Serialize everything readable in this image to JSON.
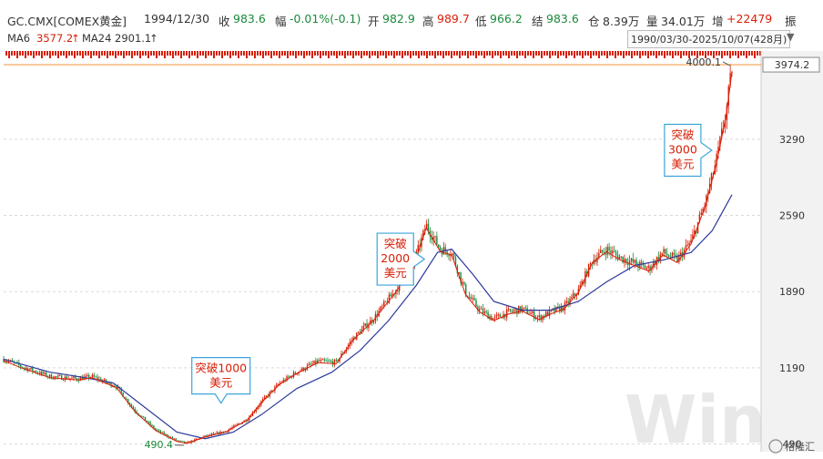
{
  "header": {
    "symbol": "GC.CMX[COMEX黄金]",
    "date": "1994/12/30",
    "close_label": "收",
    "close_value": "983.6",
    "change_label": "幅",
    "change_value": "-0.01%(-0.1)",
    "open_label": "开",
    "open_value": "982.9",
    "high_label": "高",
    "high_value": "989.7",
    "low_label": "低",
    "low_value": "966.2",
    "settle_label": "结",
    "settle_value": "983.6",
    "oi_label": "仓",
    "oi_value": "8.39万",
    "volume_label": "量",
    "volume_value": "34.01万",
    "increase_label": "增",
    "increase_value": "+22479",
    "amp_label": "振"
  },
  "ma": {
    "ma6_label": "MA6",
    "ma6_value": "3577.2",
    "ma24_label": "MA24",
    "ma24_value": "2901.1",
    "arrow": "↑"
  },
  "range_label": "1990/03/30-2025/10/07(428月)",
  "colors": {
    "up": "#d81e06",
    "down": "#1a8a3a",
    "ma6": "#d81e06",
    "ma24": "#2b3a9b",
    "grid": "#d9d9d9",
    "axis_bg": "#f2f2f2",
    "callout": "#3aa6d8",
    "price_line": "#f0a050"
  },
  "chart_data": {
    "type": "candlestick",
    "title": "",
    "x_range": [
      "1990/03",
      "2025/10"
    ],
    "y_ticks": [
      490,
      1190,
      1890,
      2590,
      3290
    ],
    "ylim": [
      420,
      4100
    ],
    "last_price_label": "3974.2",
    "max_label": "4000.1",
    "min_label": "490.4",
    "path_points": [
      [
        1990.2,
        1270
      ],
      [
        1991.5,
        1200
      ],
      [
        1993.5,
        1110
      ],
      [
        1995.5,
        1090
      ],
      [
        1996.5,
        1110
      ],
      [
        1998.2,
        1020
      ],
      [
        1999.5,
        800
      ],
      [
        2001.0,
        620
      ],
      [
        2002.5,
        520
      ],
      [
        2003.2,
        500
      ],
      [
        2004.5,
        560
      ],
      [
        2006.0,
        610
      ],
      [
        2007.5,
        720
      ],
      [
        2008.5,
        880
      ],
      [
        2009.8,
        1050
      ],
      [
        2011.0,
        1150
      ],
      [
        2012.5,
        1250
      ],
      [
        2013.8,
        1240
      ],
      [
        2015.0,
        1460
      ],
      [
        2016.5,
        1650
      ],
      [
        2018.0,
        1900
      ],
      [
        2019.3,
        2150
      ],
      [
        2020.2,
        2500
      ],
      [
        2021.2,
        2280
      ],
      [
        2022.0,
        2250
      ],
      [
        2023.0,
        1880
      ],
      [
        2024.0,
        1720
      ],
      [
        2025.0,
        1640
      ],
      [
        2026.0,
        1700
      ],
      [
        2027.0,
        1730
      ],
      [
        2028.2,
        1650
      ],
      [
        2029.0,
        1700
      ],
      [
        2030.0,
        1750
      ],
      [
        2031.0,
        1900
      ],
      [
        2032.0,
        2180
      ],
      [
        2033.0,
        2280
      ],
      [
        2034.0,
        2200
      ],
      [
        2035.0,
        2150
      ],
      [
        2036.0,
        2100
      ],
      [
        2037.0,
        2250
      ],
      [
        2038.0,
        2180
      ],
      [
        2039.0,
        2350
      ],
      [
        2040.0,
        2700
      ],
      [
        2040.8,
        3100
      ],
      [
        2041.5,
        3550
      ],
      [
        2041.9,
        3950
      ]
    ],
    "ma24_path": [
      [
        1990.2,
        1270
      ],
      [
        1993.5,
        1150
      ],
      [
        1996.0,
        1100
      ],
      [
        1998.0,
        1050
      ],
      [
        2000.0,
        850
      ],
      [
        2002.5,
        600
      ],
      [
        2004.5,
        540
      ],
      [
        2006.5,
        600
      ],
      [
        2008.5,
        760
      ],
      [
        2011.0,
        1000
      ],
      [
        2013.5,
        1150
      ],
      [
        2015.5,
        1350
      ],
      [
        2017.5,
        1620
      ],
      [
        2019.5,
        1950
      ],
      [
        2021.0,
        2250
      ],
      [
        2022.0,
        2280
      ],
      [
        2023.5,
        2050
      ],
      [
        2025.0,
        1800
      ],
      [
        2027.0,
        1720
      ],
      [
        2029.0,
        1720
      ],
      [
        2031.0,
        1800
      ],
      [
        2033.0,
        1980
      ],
      [
        2035.0,
        2130
      ],
      [
        2037.0,
        2180
      ],
      [
        2039.0,
        2250
      ],
      [
        2040.5,
        2450
      ],
      [
        2041.9,
        2780
      ]
    ],
    "annotations": [
      {
        "label_lines": [
          "突破1000",
          "美元"
        ],
        "anchor_year": 2008.6,
        "anchor_price": 1000
      },
      {
        "label_lines": [
          "突破",
          "2000",
          "美元"
        ],
        "anchor_year": 2020.2,
        "anchor_price": 2000
      },
      {
        "label_lines": [
          "突破",
          "3000",
          "美元"
        ],
        "anchor_year": 2040.6,
        "anchor_price": 3000
      }
    ]
  },
  "watermark": "Wind",
  "badge_text": "格隆汇"
}
